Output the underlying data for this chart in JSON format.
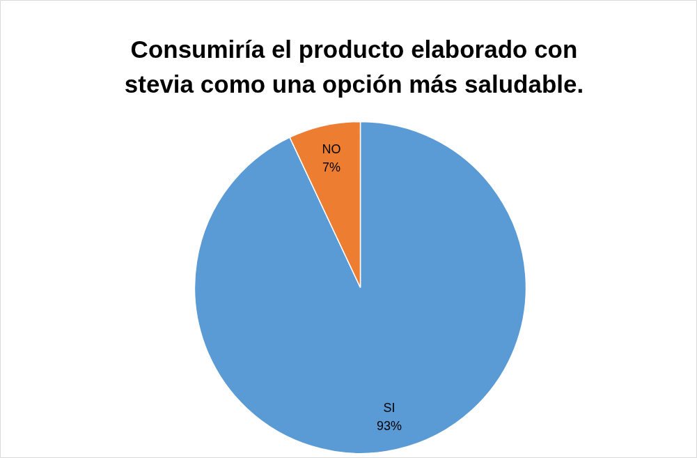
{
  "chart_data": {
    "type": "pie",
    "title": "Consumiría el producto elaborado con stevia como una opción más saludable.",
    "categories": [
      "SI",
      "NO"
    ],
    "values": [
      93,
      7
    ],
    "colors": [
      "#5b9bd5",
      "#ed7d31"
    ],
    "value_labels": [
      "93%",
      "7%"
    ]
  }
}
